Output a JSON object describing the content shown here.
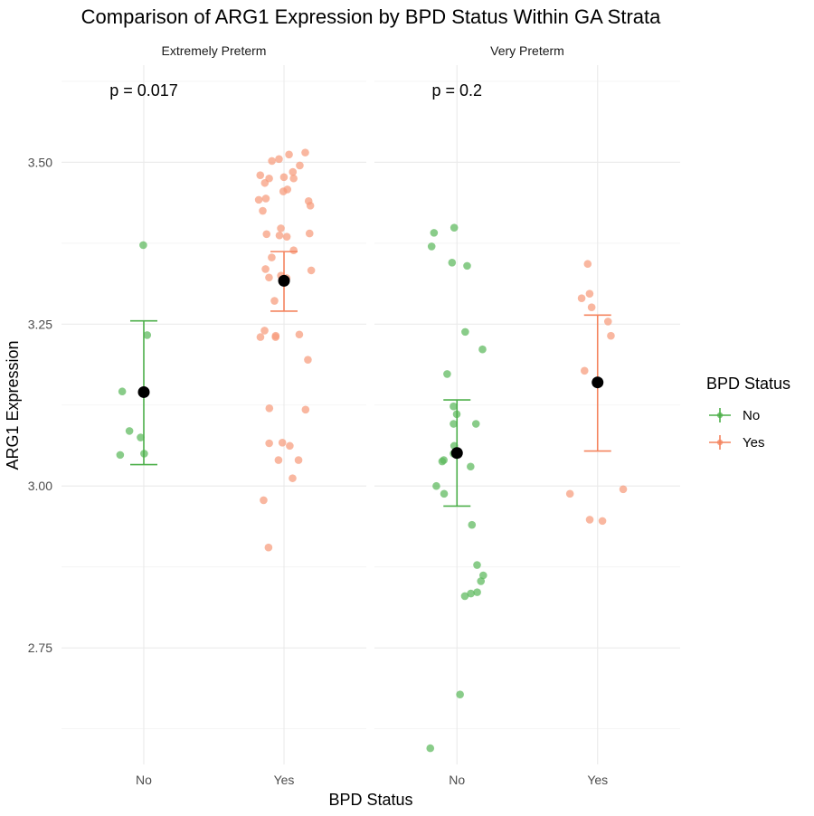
{
  "chart_data": {
    "type": "scatter",
    "title": "Comparison of ARG1 Expression by BPD Status Within GA Strata",
    "xlabel": "BPD Status",
    "ylabel": "ARG1 Expression",
    "categories": [
      "No",
      "Yes"
    ],
    "ylim": [
      2.57,
      3.65
    ],
    "yticks": [
      "2.75",
      "3.00",
      "3.25",
      "3.50"
    ],
    "grid": true,
    "legend": {
      "title": "BPD Status",
      "position": "right",
      "entries": [
        {
          "label": "No",
          "color": "#4daf4a"
        },
        {
          "label": "Yes",
          "color": "#f4845f"
        }
      ]
    },
    "colors": {
      "No": "#5cb85c",
      "Yes": "#f79b7b",
      "mean": "#000000"
    },
    "panels": [
      {
        "label": "Extremely Preterm",
        "pvalue": "p = 0.017",
        "groups": [
          {
            "category": "No",
            "mean": 3.145,
            "ci_low": 3.033,
            "ci_high": 3.255,
            "points": [
              3.372,
              3.233,
              3.146,
              3.085,
              3.075,
              3.05,
              3.048
            ]
          },
          {
            "category": "Yes",
            "mean": 3.317,
            "ci_low": 3.27,
            "ci_high": 3.362,
            "points": [
              3.515,
              3.512,
              3.505,
              3.502,
              3.495,
              3.485,
              3.48,
              3.477,
              3.475,
              3.475,
              3.468,
              3.458,
              3.455,
              3.444,
              3.442,
              3.44,
              3.433,
              3.425,
              3.398,
              3.39,
              3.389,
              3.387,
              3.385,
              3.364,
              3.353,
              3.335,
              3.333,
              3.325,
              3.322,
              3.321,
              3.286,
              3.24,
              3.234,
              3.232,
              3.23,
              3.23,
              3.195,
              3.12,
              3.118,
              3.067,
              3.066,
              3.062,
              3.04,
              3.04,
              3.012,
              2.978,
              2.905
            ]
          }
        ]
      },
      {
        "label": "Very Preterm",
        "pvalue": "p = 0.2",
        "groups": [
          {
            "category": "No",
            "mean": 3.051,
            "ci_low": 2.969,
            "ci_high": 3.133,
            "points": [
              3.399,
              3.391,
              3.37,
              3.345,
              3.34,
              3.238,
              3.211,
              3.173,
              3.123,
              3.111,
              3.096,
              3.096,
              3.062,
              3.05,
              3.04,
              3.038,
              3.03,
              3.0,
              2.988,
              2.94,
              2.878,
              2.862,
              2.853,
              2.836,
              2.834,
              2.83,
              2.678,
              2.595
            ]
          },
          {
            "category": "Yes",
            "mean": 3.16,
            "ci_low": 3.054,
            "ci_high": 3.264,
            "points": [
              3.343,
              3.297,
              3.29,
              3.276,
              3.254,
              3.232,
              3.178,
              2.995,
              2.988,
              2.948,
              2.946
            ]
          }
        ]
      }
    ]
  }
}
